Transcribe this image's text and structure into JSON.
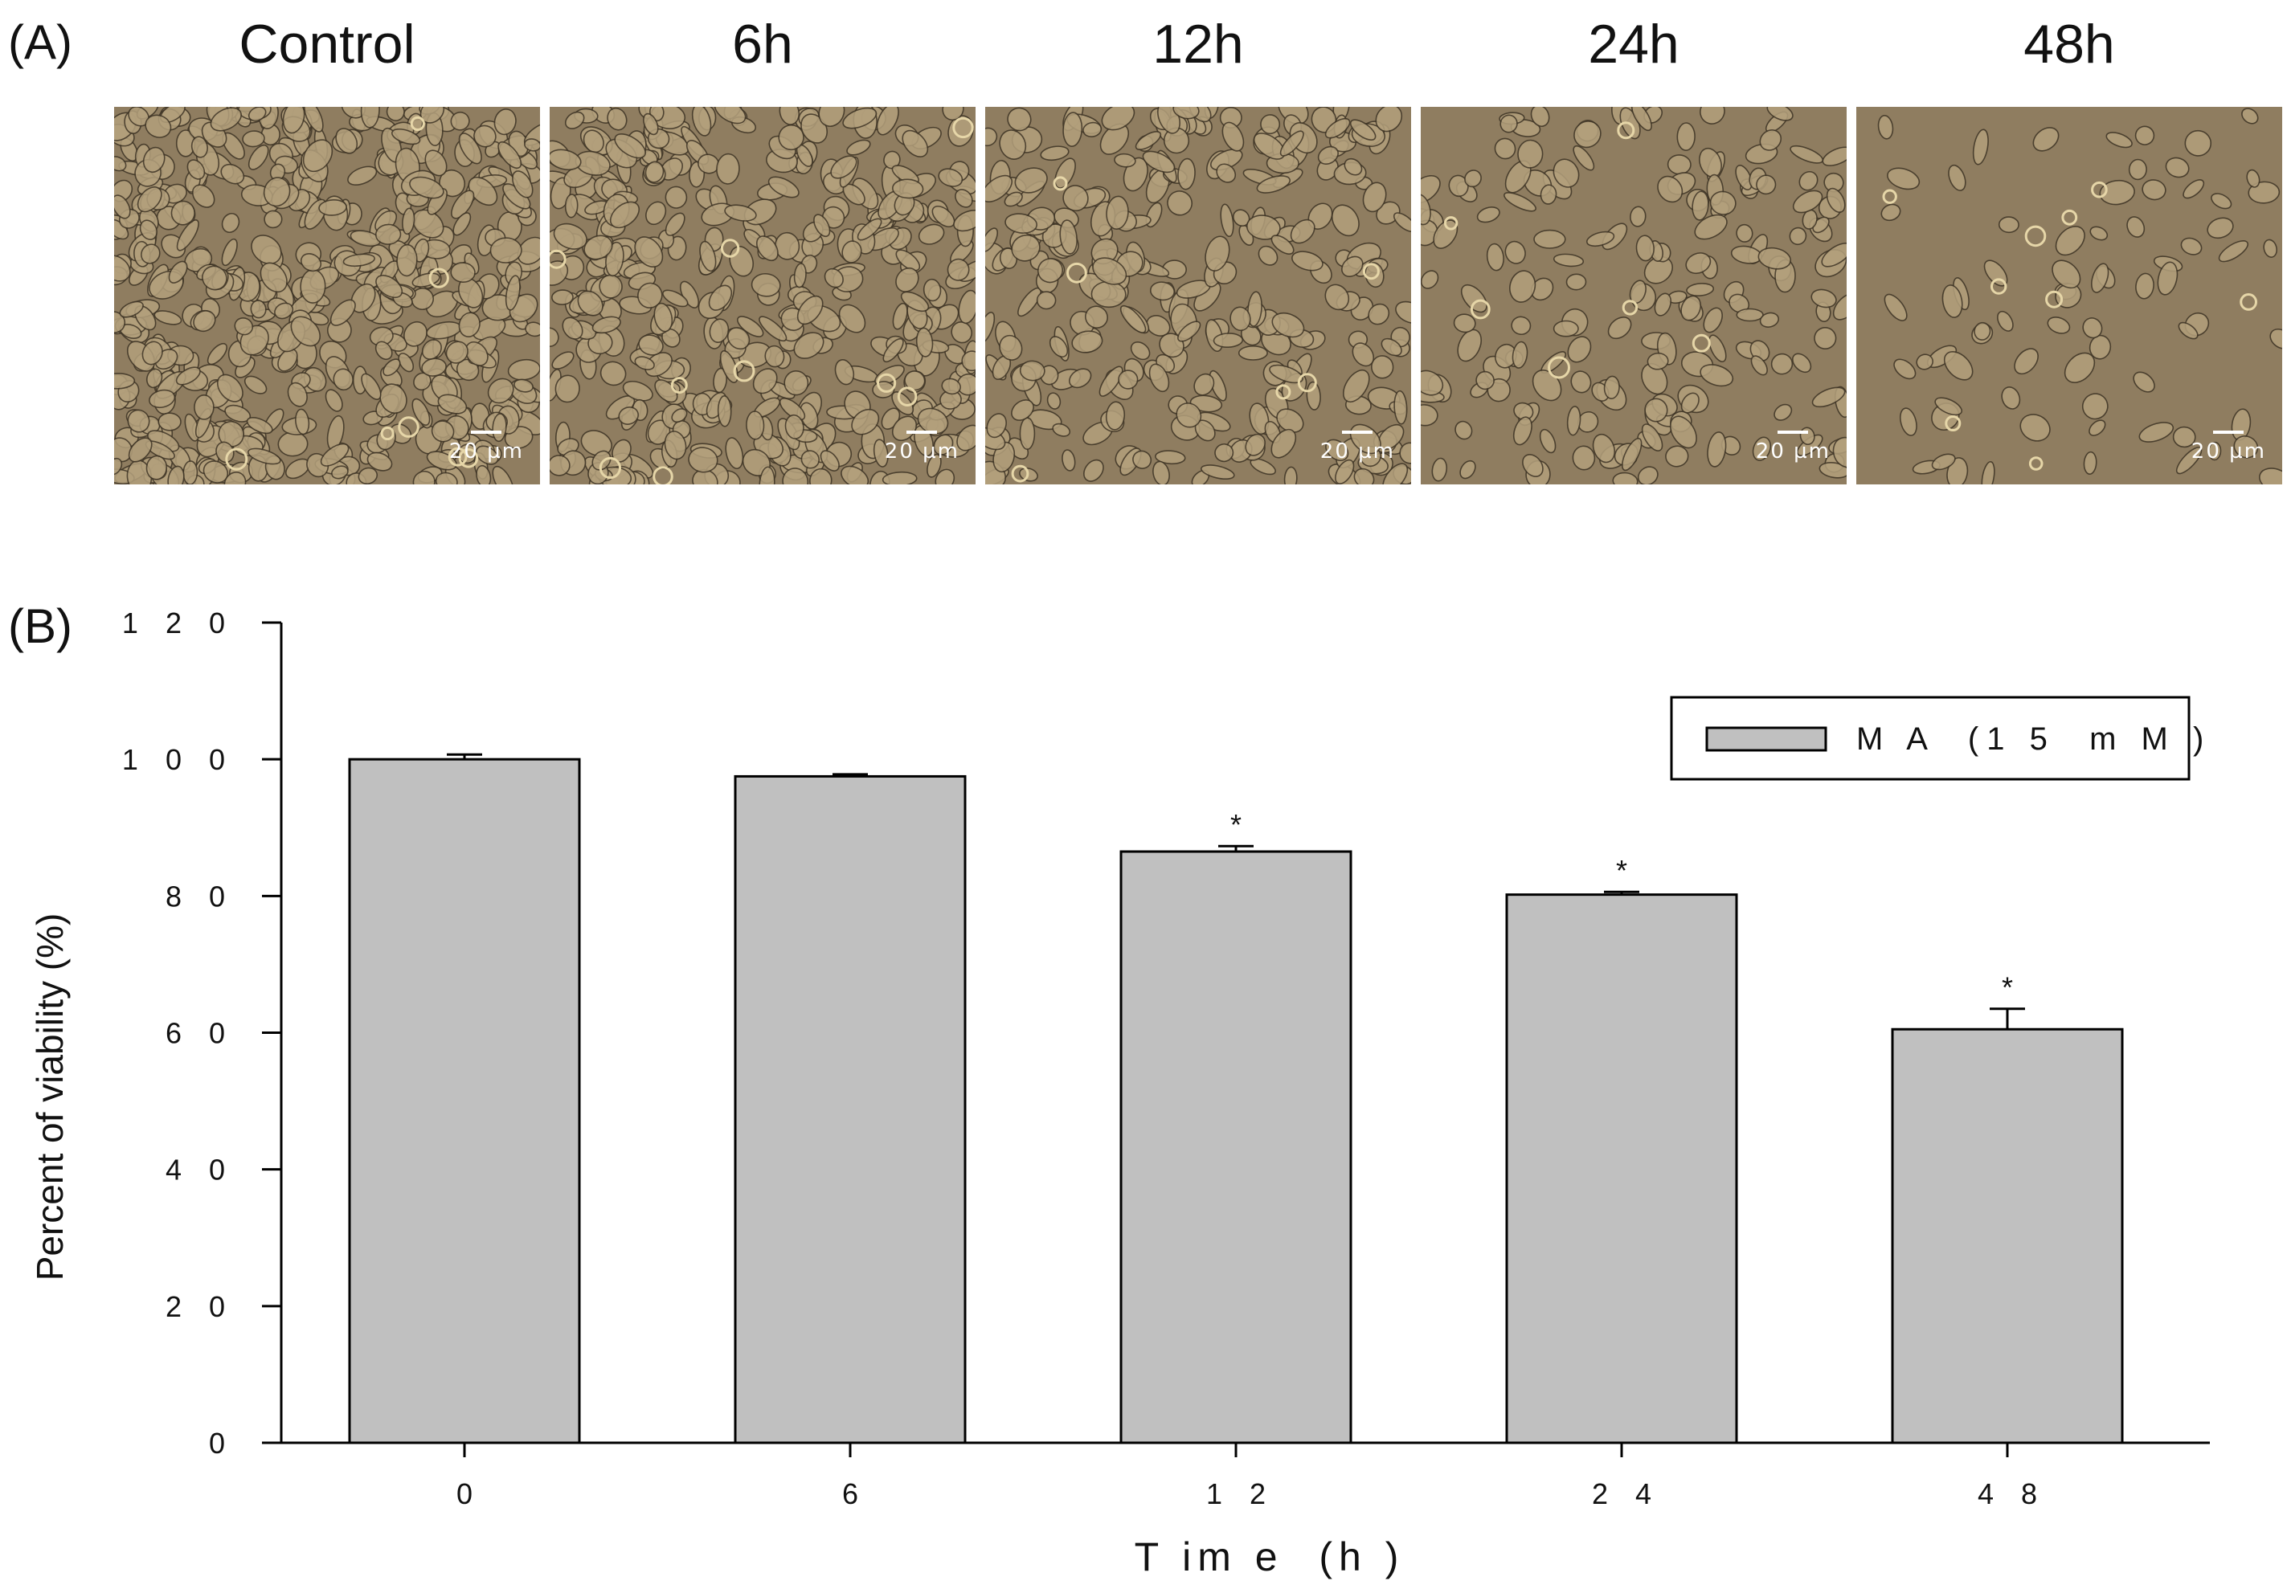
{
  "panel_a": {
    "label": "(A)",
    "columns": [
      {
        "title": "Control",
        "scale": "20 µm",
        "density": 1.0
      },
      {
        "title": "6h",
        "scale": "20 µm",
        "density": 0.78
      },
      {
        "title": "12h",
        "scale": "20 µm",
        "density": 0.55
      },
      {
        "title": "24h",
        "scale": "20 µm",
        "density": 0.35
      },
      {
        "title": "48h",
        "scale": "20 µm",
        "density": 0.14
      }
    ],
    "colors": {
      "micro_background": "#8f7d60",
      "cell_fill": "#b3a07c",
      "cell_outline": "#3f3526",
      "cell_highlight": "#e6d6a8"
    }
  },
  "panel_b": {
    "label": "(B)"
  },
  "chart_data": {
    "type": "bar",
    "categories": [
      "0",
      "6",
      "12",
      "24",
      "48"
    ],
    "series": [
      {
        "name": "M A  (1 5  m M )",
        "values": [
          100,
          97.5,
          86.5,
          80.2,
          60.5
        ],
        "errors": [
          0.7,
          0.3,
          0.8,
          0.4,
          3.0
        ]
      }
    ],
    "significance": [
      "",
      "",
      "*",
      "*",
      "*"
    ],
    "xlabel": "T im e  (h )",
    "ylabel": "Percent of viability (%)",
    "ylim": [
      0,
      120
    ],
    "yticks": [
      0,
      20,
      40,
      60,
      80,
      100,
      120
    ],
    "ytick_labels": [
      "0",
      "2 0",
      "4 0",
      "6 0",
      "8 0",
      "1 0 0",
      "1 2 0"
    ],
    "xtick_labels": [
      "0",
      "6",
      "1 2",
      "2 4",
      "4 8"
    ],
    "legend_position": "top-right",
    "grid": false,
    "bar_color": "#c0c0c0",
    "edge_color": "#000000"
  }
}
